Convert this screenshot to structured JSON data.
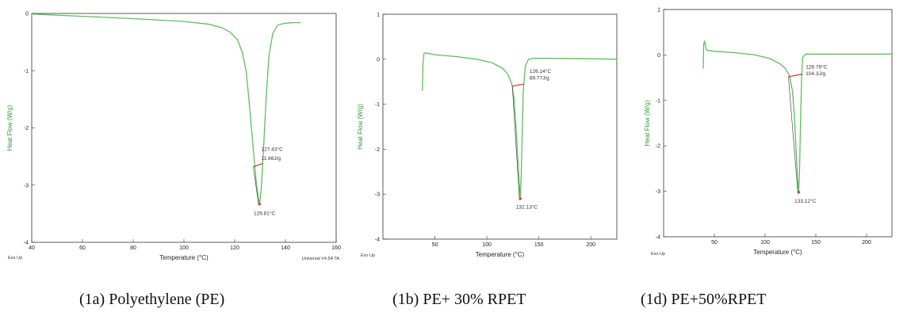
{
  "chart_data": [
    {
      "type": "line",
      "caption": "(1a) Polyethylene (PE)",
      "xlabel": "Temperature (°C)",
      "ylabel": "Heat Flow (W/g)",
      "xlim": [
        40,
        160
      ],
      "ylim": [
        -4,
        0
      ],
      "xticks": [
        40,
        60,
        80,
        100,
        120,
        140,
        160
      ],
      "yticks": [
        0,
        -1,
        -2,
        -3,
        -4
      ],
      "exo_label": "Exo Up",
      "footer": "Universal V4.5A TA",
      "color": "#5cbf5c",
      "series": [
        {
          "x": [
            40,
            60,
            80,
            100,
            110,
            115,
            118,
            121,
            123,
            124.5,
            125.5,
            126.5,
            127.5,
            128.5,
            129.4,
            129.81,
            130.5,
            131.5,
            132.5,
            133.5,
            135,
            137,
            140,
            143,
            146
          ],
          "y": [
            -0.01,
            -0.05,
            -0.09,
            -0.14,
            -0.19,
            -0.25,
            -0.32,
            -0.45,
            -0.68,
            -1.0,
            -1.45,
            -1.95,
            -2.45,
            -2.95,
            -3.25,
            -3.33,
            -3.05,
            -2.25,
            -1.4,
            -0.75,
            -0.35,
            -0.2,
            -0.17,
            -0.16,
            -0.16
          ]
        }
      ],
      "annotations": [
        {
          "text": "127.43°C",
          "x": 130.5,
          "y": -2.4
        },
        {
          "text": "11.66J/g",
          "x": 130.5,
          "y": -2.56
        },
        {
          "text": "129.81°C",
          "x": 127.5,
          "y": -3.52
        }
      ],
      "baseline": {
        "x": [
          127.3,
          131.2
        ],
        "y": [
          -2.68,
          -2.62
        ]
      },
      "peak": {
        "x": 129.81,
        "y": -3.33
      }
    },
    {
      "type": "line",
      "caption": "(1b) PE+ 30% RPET",
      "xlabel": "Temperature (°C)",
      "ylabel": "Heat Flow (W/g)",
      "xlim": [
        0,
        225
      ],
      "ylim": [
        -4,
        1
      ],
      "xticks": [
        50,
        100,
        150,
        200
      ],
      "yticks": [
        1,
        0,
        -1,
        -2,
        -3,
        -4
      ],
      "exo_label": "Exo Up",
      "color": "#5cbf5c",
      "series": [
        {
          "x": [
            38,
            38.5,
            39.5,
            41,
            50,
            70,
            90,
            105,
            115,
            120,
            124,
            126,
            128,
            130,
            131.5,
            132.13,
            133,
            134,
            135,
            137,
            140,
            145,
            160,
            200,
            225
          ],
          "y": [
            -0.7,
            -0.1,
            0.13,
            0.14,
            0.1,
            0.06,
            0.0,
            -0.08,
            -0.2,
            -0.33,
            -0.55,
            -0.85,
            -1.5,
            -2.3,
            -2.9,
            -3.1,
            -2.6,
            -1.6,
            -0.7,
            -0.15,
            0.0,
            0.02,
            0.02,
            0.01,
            0.0
          ]
        }
      ],
      "annotations": [
        {
          "text": "126.14°C",
          "x": 141,
          "y": -0.3
        },
        {
          "text": "89.77J/g",
          "x": 141,
          "y": -0.45
        },
        {
          "text": "132.13°C",
          "x": 128,
          "y": -3.32
        }
      ],
      "baseline": {
        "x": [
          124.5,
          136
        ],
        "y": [
          -0.6,
          -0.55
        ]
      },
      "peak": {
        "x": 132.13,
        "y": -3.1
      }
    },
    {
      "type": "line",
      "caption": "(1d) PE+50%RPET",
      "xlabel": "Temperature (°C)",
      "ylabel": "Heat Flow (W/g)",
      "xlim": [
        0,
        225
      ],
      "ylim": [
        -4,
        1
      ],
      "xticks": [
        50,
        100,
        150,
        200
      ],
      "yticks": [
        1,
        0,
        -1,
        -2,
        -3,
        -4
      ],
      "exo_label": "Exo Up",
      "color": "#5cbf5c",
      "series": [
        {
          "x": [
            39,
            39.5,
            40.5,
            42,
            44,
            50,
            70,
            90,
            105,
            115,
            120,
            124,
            127,
            129,
            131,
            132.5,
            133.12,
            134,
            135,
            136,
            137,
            140,
            160,
            200,
            225
          ],
          "y": [
            -0.3,
            0.25,
            0.3,
            0.12,
            0.1,
            0.08,
            0.05,
            0.0,
            -0.08,
            -0.2,
            -0.3,
            -0.45,
            -0.8,
            -1.4,
            -2.3,
            -2.9,
            -3.02,
            -2.5,
            -1.4,
            -0.5,
            -0.05,
            0.02,
            0.02,
            0.02,
            0.02
          ]
        }
      ],
      "annotations": [
        {
          "text": "126.78°C",
          "x": 140,
          "y": -0.3
        },
        {
          "text": "104.3J/g",
          "x": 140,
          "y": -0.45
        },
        {
          "text": "133.12°C",
          "x": 129,
          "y": -3.25
        }
      ],
      "baseline": {
        "x": [
          123,
          137
        ],
        "y": [
          -0.48,
          -0.42
        ]
      },
      "peak": {
        "x": 133.12,
        "y": -3.02
      }
    }
  ]
}
